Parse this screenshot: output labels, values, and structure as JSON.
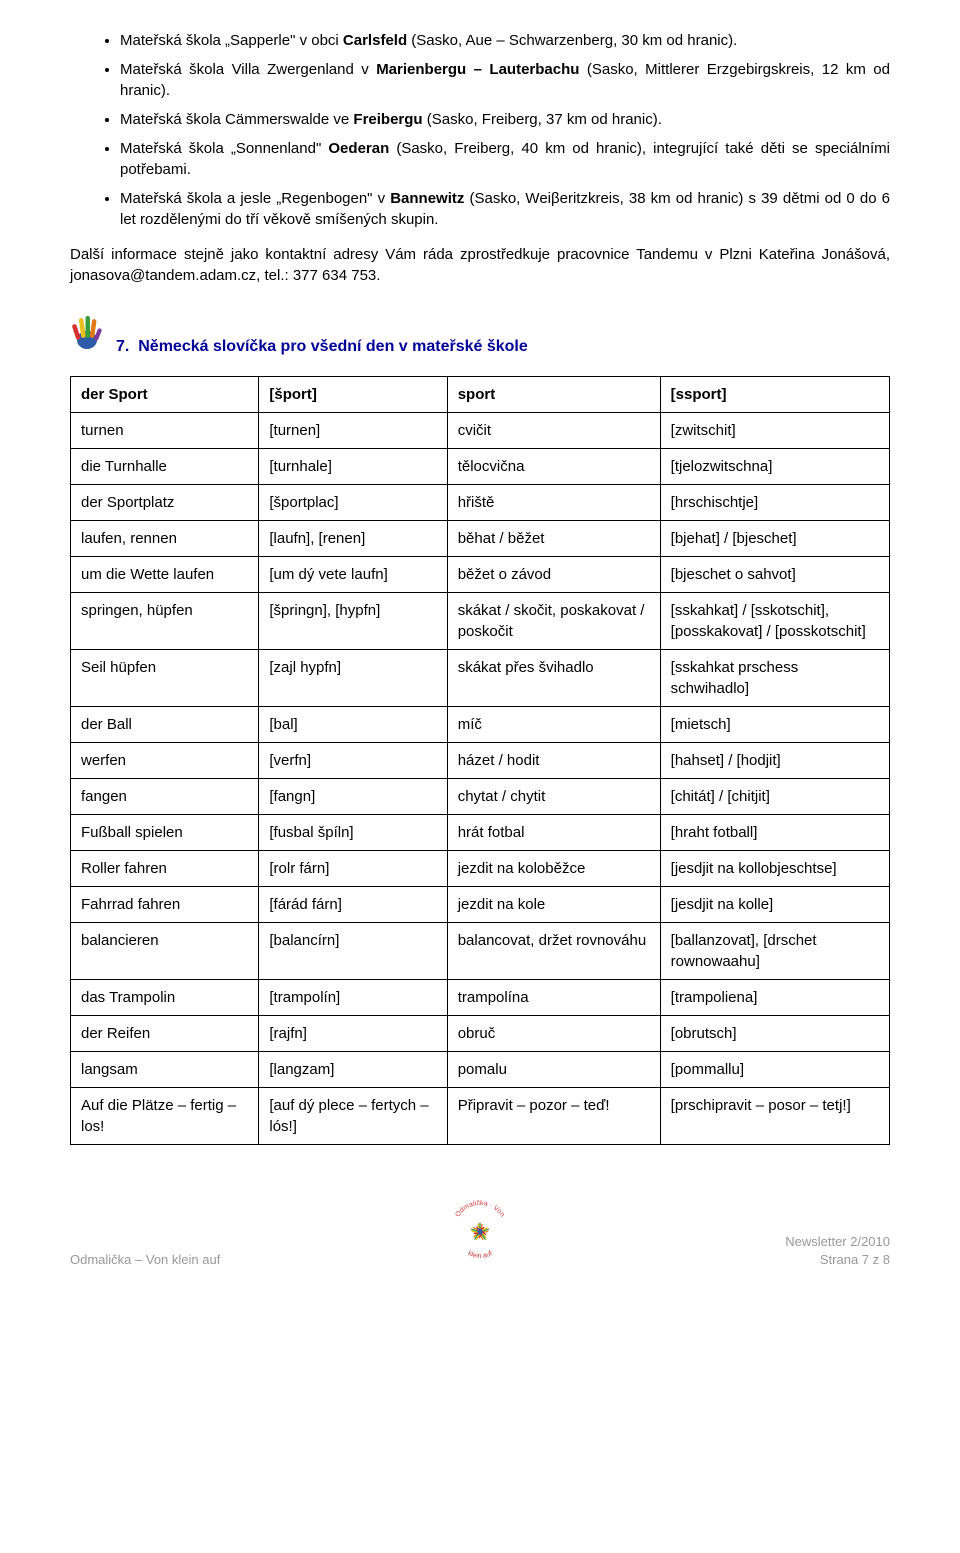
{
  "bullets": [
    {
      "pre": "Mateřská škola „Sapperle\" v obci ",
      "bold1": "Carlsfeld",
      "post": " (Sasko, Aue – Schwarzenberg, 30 km od hranic)."
    },
    {
      "pre": "Mateřská škola Villa Zwergenland v ",
      "bold1": "Marienbergu – Lauterbachu",
      "post": " (Sasko, Mittlerer Erzgebirgskreis, 12 km od hranic)."
    },
    {
      "pre": "Mateřská škola Cämmerswalde ve ",
      "bold1": "Freibergu",
      "post": " (Sasko, Freiberg, 37 km od hranic)."
    },
    {
      "pre": "Mateřská škola „Sonnenland\" ",
      "bold1": "Oederan",
      "post": " (Sasko, Freiberg, 40 km od hranic), integrující také děti se speciálními potřebami."
    },
    {
      "pre": "Mateřská škola a jesle „Regenbogen\" v ",
      "bold1": "Bannewitz",
      "post": " (Sasko, Weiβeritzkreis, 38 km od hranic) s 39 dětmi od 0 do 6 let rozdělenými do tří věkově smíšených skupin."
    }
  ],
  "paragraph": "Další informace stejně jako kontaktní adresy Vám ráda zprostředkuje pracovnice Tandemu v Plzni Kateřina Jonášová, jonasova@tandem.adam.cz, tel.: 377 634 753.",
  "section": {
    "number": "7.",
    "title": "Německá slovíčka pro všední den v mateřské škole"
  },
  "table": {
    "header": [
      "der Sport",
      "[šport]",
      "sport",
      "[ssport]"
    ],
    "rows": [
      [
        "turnen",
        "[turnen]",
        "cvičit",
        "[zwitschit]"
      ],
      [
        "die Turnhalle",
        "[turnhale]",
        "tělocvična",
        "[tjelozwitschna]"
      ],
      [
        "der Sportplatz",
        "[športplac]",
        "hřiště",
        "[hrschischtje]"
      ],
      [
        "laufen, rennen",
        "[laufn], [renen]",
        "běhat / běžet",
        "[bjehat] / [bjeschet]"
      ],
      [
        "um die Wette laufen",
        "[um dý vete laufn]",
        "běžet o závod",
        "[bjeschet o sahvot]"
      ],
      [
        "springen, hüpfen",
        "[špringn], [hypfn]",
        "skákat / skočit, poskakovat / poskočit",
        "[sskahkat] / [sskotschit], [posskakovat] / [posskotschit]"
      ],
      [
        "Seil hüpfen",
        "[zajl hypfn]",
        "skákat přes švihadlo",
        "[sskahkat prschess schwihadlo]"
      ],
      [
        "der Ball",
        "[bal]",
        "míč",
        "[mietsch]"
      ],
      [
        "werfen",
        "[verfn]",
        "házet / hodit",
        "[hahset] / [hodjit]"
      ],
      [
        "fangen",
        "[fangn]",
        "chytat / chytit",
        "[chitát] / [chitjit]"
      ],
      [
        "Fußball spielen",
        "[fusbal špíln]",
        "hrát fotbal",
        "[hraht fotball]"
      ],
      [
        "Roller fahren",
        "[rolr fárn]",
        "jezdit na koloběžce",
        "[jesdjit na kollobjeschtse]"
      ],
      [
        "Fahrrad fahren",
        "[fárád fárn]",
        "jezdit na kole",
        "[jesdjit na kolle]"
      ],
      [
        "balancieren",
        "[balancírn]",
        "balancovat, držet rovnováhu",
        "[ballanzovat], [drschet rownowaahu]"
      ],
      [
        "das Trampolin",
        "[trampolín]",
        "trampolína",
        "[trampoliena]"
      ],
      [
        "der Reifen",
        "[rajfn]",
        "obruč",
        "[obrutsch]"
      ],
      [
        "langsam",
        "[langzam]",
        "pomalu",
        "[pommallu]"
      ],
      [
        "Auf die Plätze – fertig – los!",
        "[auf dý plece – fertych – lós!]",
        "Připravit – pozor – teď!",
        "[prschipravit – posor – tetj!]"
      ]
    ]
  },
  "footer": {
    "left": "Odmalička – Von klein auf",
    "right_line1": "Newsletter 2/2010",
    "right_line2": "Strana 7 z 8"
  },
  "colors": {
    "heading": "#000099",
    "text": "#000000",
    "footer": "#999999",
    "border": "#000000",
    "hand_palm": "#2e5aa8",
    "finger_red": "#d93030",
    "finger_yellow": "#e8c020",
    "finger_green": "#3a9c3a",
    "finger_orange": "#e07a1a",
    "finger_purple": "#7a3a9c"
  }
}
